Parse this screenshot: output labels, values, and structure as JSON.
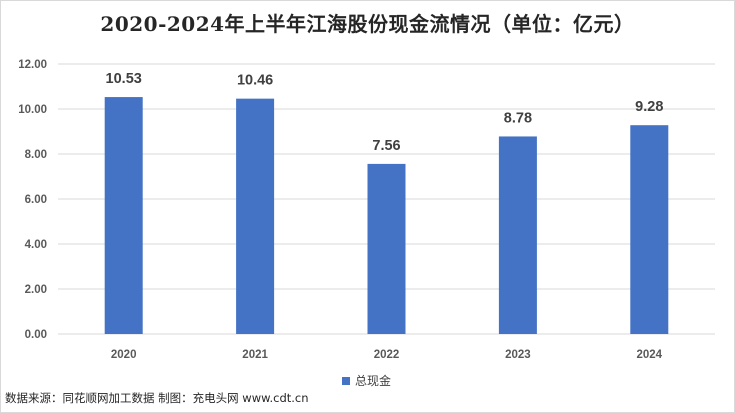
{
  "chart_data": {
    "type": "bar",
    "title": "2020-2024年上半年江海股份现金流情况（单位：亿元）",
    "categories": [
      "2020",
      "2021",
      "2022",
      "2023",
      "2024"
    ],
    "series": [
      {
        "name": "总现金",
        "values": [
          10.53,
          10.46,
          7.56,
          8.78,
          9.28
        ],
        "color": "#4472c4"
      }
    ],
    "data_labels": [
      "10.53",
      "10.46",
      "7.56",
      "8.78",
      "9.28"
    ],
    "ylim": [
      0,
      12
    ],
    "yticks": [
      "0.00",
      "2.00",
      "4.00",
      "6.00",
      "8.00",
      "10.00",
      "12.00"
    ],
    "grid": true,
    "legend_position": "bottom"
  },
  "source_note": "数据来源：同花顺网加工数据 制图：充电头网 www.cdt.cn"
}
